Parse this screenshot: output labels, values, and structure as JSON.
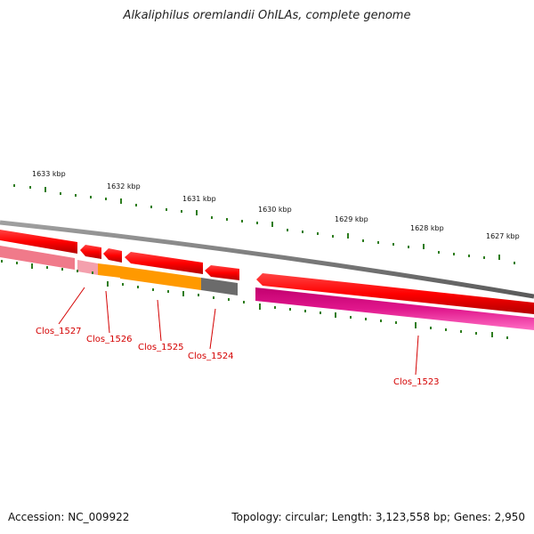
{
  "title": "Alkaliphilus oremlandii OhILAs, complete genome",
  "footer": {
    "accession": "Accession: NC_009922",
    "summary": "Topology: circular; Length: 3,123,558 bp; Genes: 2,950"
  },
  "scale_labels": [
    "1633 kbp",
    "1632 kbp",
    "1631 kbp",
    "1630 kbp",
    "1629 kbp",
    "1628 kbp",
    "1627 kbp"
  ],
  "genes": [
    {
      "label": "Clos_1527"
    },
    {
      "label": "Clos_1526"
    },
    {
      "label": "Clos_1525"
    },
    {
      "label": "Clos_1524"
    },
    {
      "label": "Clos_1523"
    }
  ],
  "colors": {
    "backbone": "#808080",
    "forward_feature": "#ff0000",
    "tick": "#2e7d1f",
    "label": "#d40000",
    "pink": "#f07a8a",
    "orange": "#ff9900",
    "dark_gray": "#6b6b6b",
    "magenta": "#e0168c"
  }
}
